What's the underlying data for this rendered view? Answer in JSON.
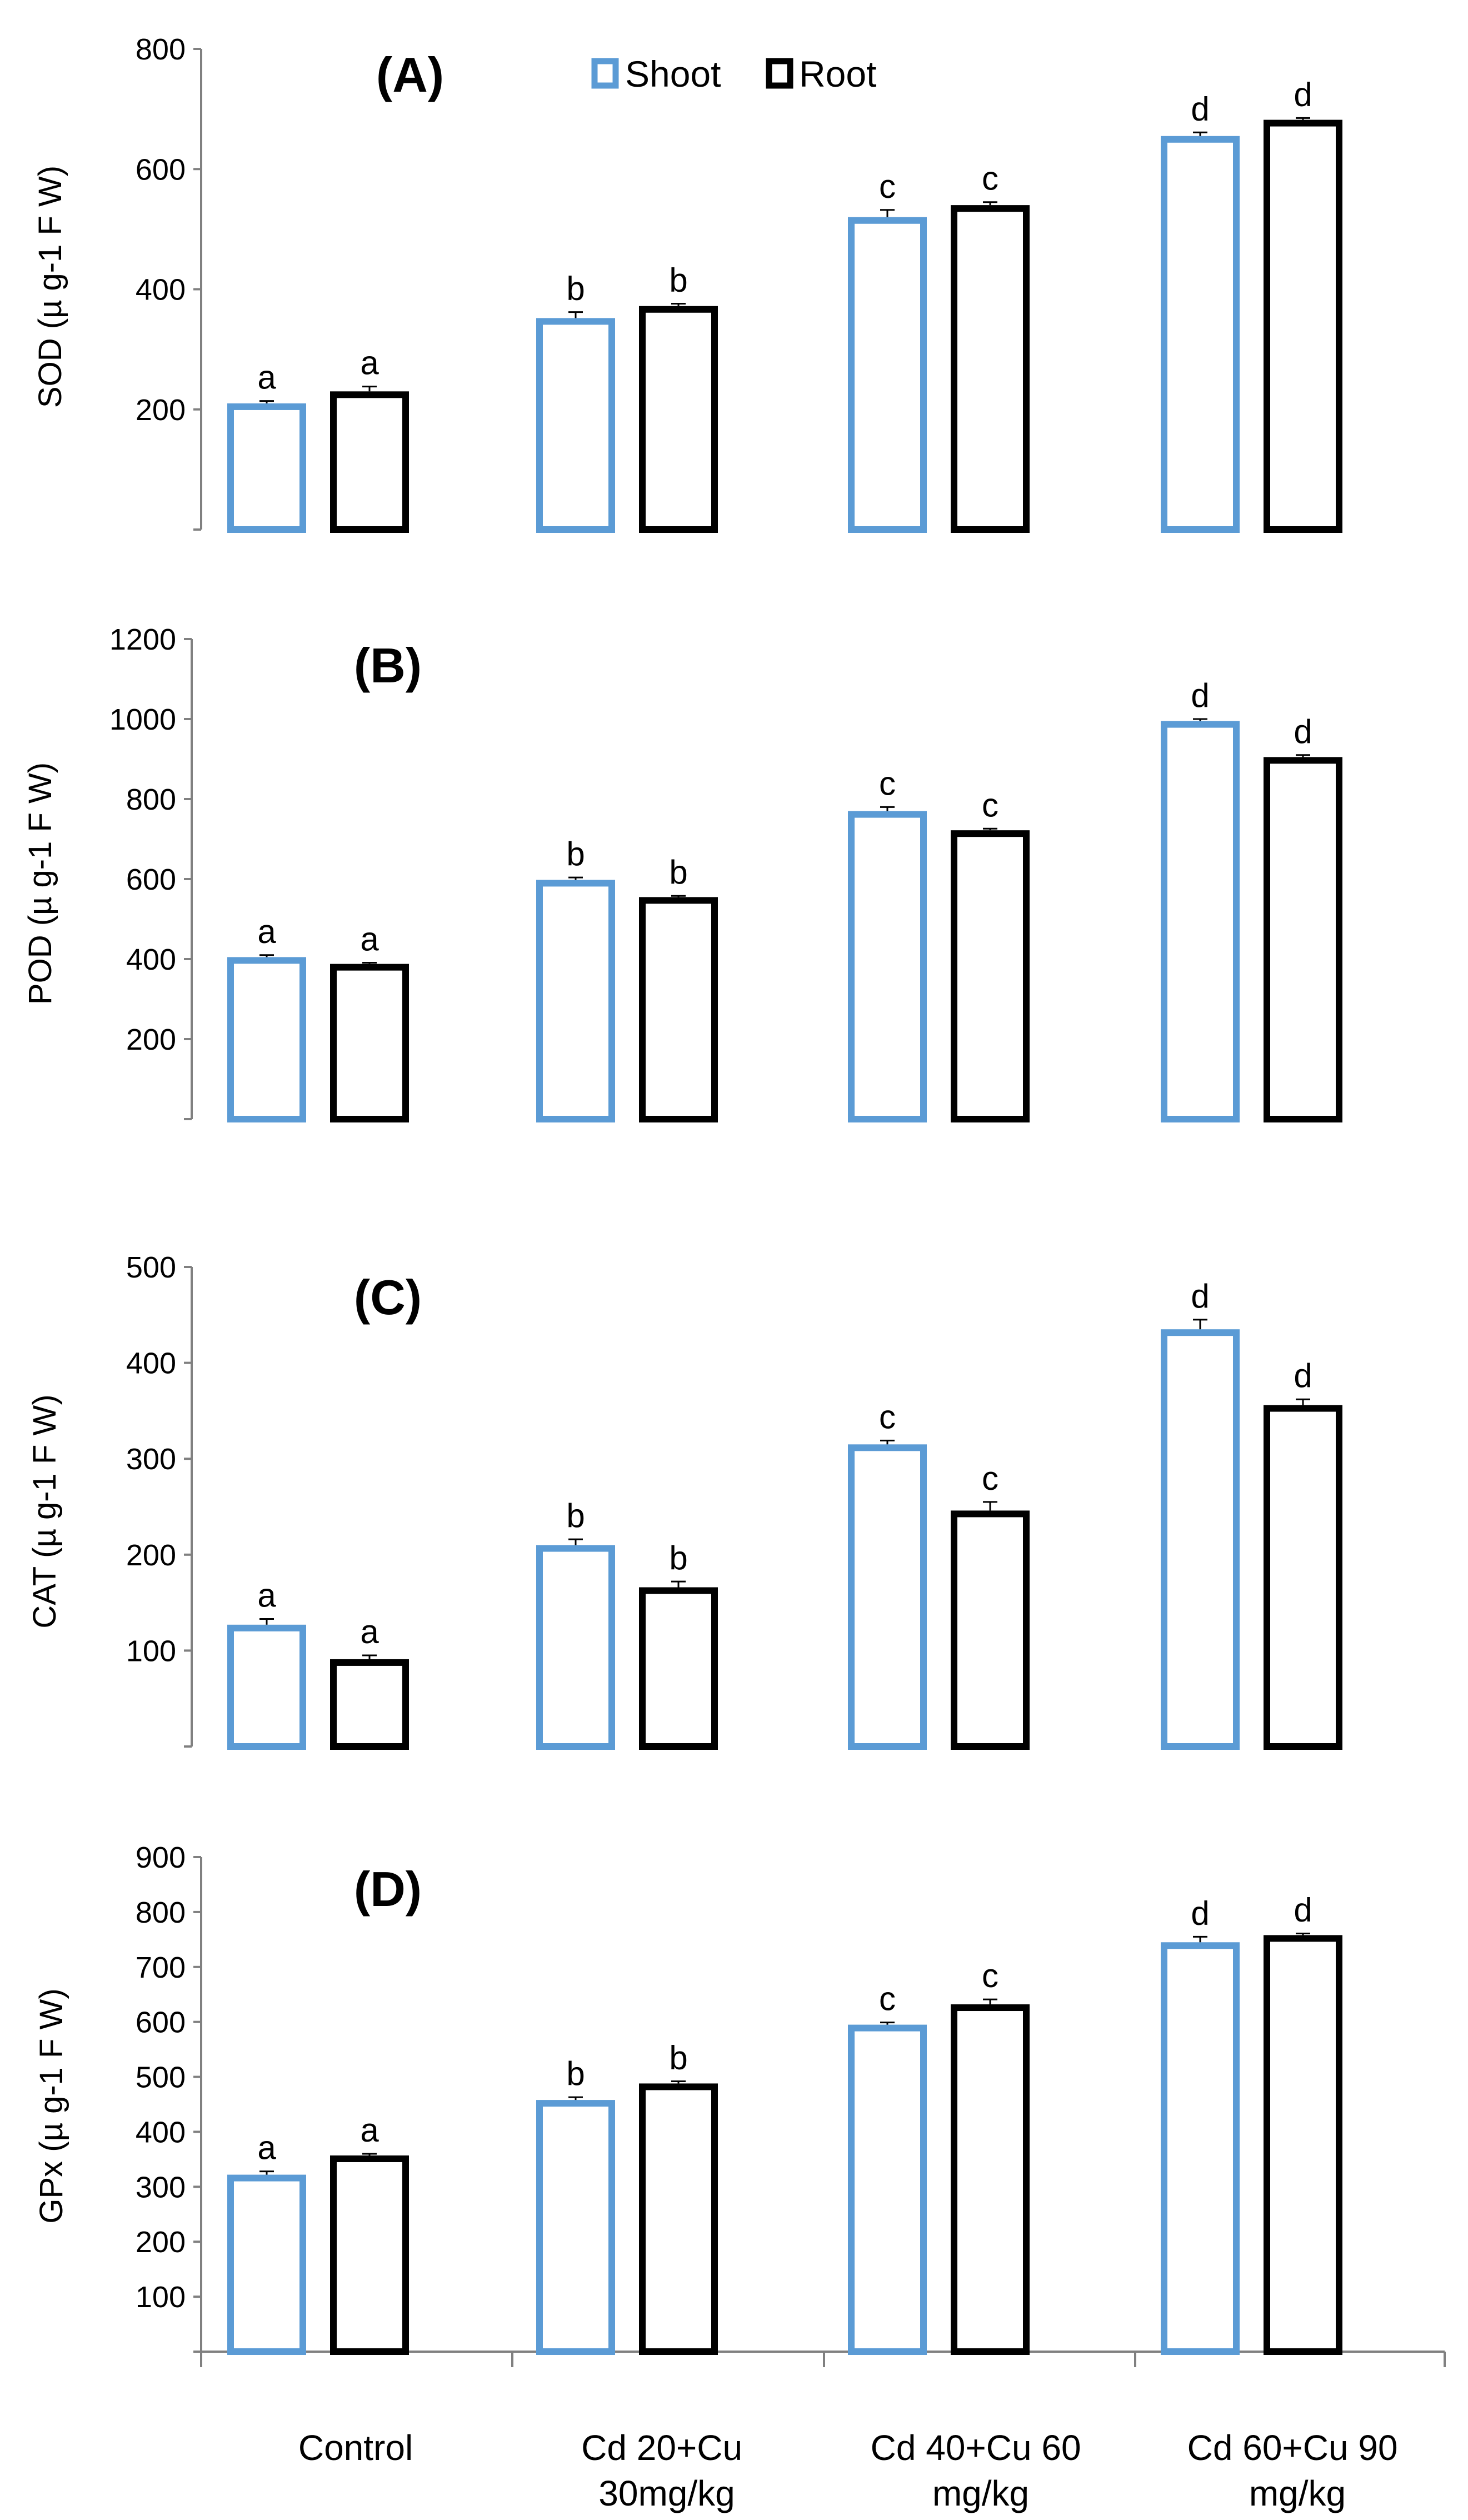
{
  "chart_data": [
    {
      "type": "bar",
      "title": "(A)",
      "ylabel": "SOD (µ g-1 F W)",
      "ylim": [
        0,
        800
      ],
      "yticks": [
        200,
        400,
        600,
        800
      ],
      "categories": [
        "Control",
        "Cd 20+Cu 30mg/kg",
        "Cd 40+Cu 60 mg/kg",
        "Cd 60+Cu 90 mg/kg"
      ],
      "series": [
        {
          "name": "Shoot",
          "color": "#5B9BD5",
          "values": [
            210,
            352,
            520,
            655
          ],
          "errors": [
            4,
            10,
            12,
            6
          ],
          "labels": [
            "a",
            "b",
            "c",
            "d"
          ]
        },
        {
          "name": "Root",
          "color": "#000000",
          "values": [
            230,
            372,
            540,
            682
          ],
          "errors": [
            8,
            4,
            5,
            3
          ],
          "labels": [
            "a",
            "b",
            "c",
            "d"
          ]
        }
      ]
    },
    {
      "type": "bar",
      "title": "(B)",
      "ylabel": "POD (µ g-1 F W)",
      "ylim": [
        0,
        1200
      ],
      "yticks": [
        200,
        400,
        600,
        800,
        1000,
        1200
      ],
      "categories": [
        "Control",
        "Cd 20+Cu 30mg/kg",
        "Cd 40+Cu 60 mg/kg",
        "Cd 60+Cu 90 mg/kg"
      ],
      "series": [
        {
          "name": "Shoot",
          "color": "#5B9BD5",
          "values": [
            405,
            598,
            770,
            995
          ],
          "errors": [
            5,
            6,
            10,
            5
          ],
          "labels": [
            "a",
            "b",
            "c",
            "d"
          ]
        },
        {
          "name": "Root",
          "color": "#000000",
          "values": [
            388,
            555,
            722,
            905
          ],
          "errors": [
            3,
            3,
            4,
            5
          ],
          "labels": [
            "a",
            "b",
            "c",
            "d"
          ]
        }
      ]
    },
    {
      "type": "bar",
      "title": "(C)",
      "ylabel": "CAT (µ g-1 F W)",
      "ylim": [
        0,
        500
      ],
      "yticks": [
        100,
        200,
        300,
        400,
        500
      ],
      "categories": [
        "Control",
        "Cd 20+Cu 30mg/kg",
        "Cd 40+Cu 60 mg/kg",
        "Cd 60+Cu 90 mg/kg"
      ],
      "series": [
        {
          "name": "Shoot",
          "color": "#5B9BD5",
          "values": [
            127,
            210,
            315,
            435
          ],
          "errors": [
            6,
            6,
            4,
            10
          ],
          "labels": [
            "a",
            "b",
            "c",
            "d"
          ]
        },
        {
          "name": "Root",
          "color": "#000000",
          "values": [
            91,
            166,
            246,
            356
          ],
          "errors": [
            4,
            6,
            9,
            6
          ],
          "labels": [
            "a",
            "b",
            "c",
            "d"
          ]
        }
      ]
    },
    {
      "type": "bar",
      "title": "(D)",
      "ylabel": "GPx (µ g-1 F W)",
      "ylim": [
        0,
        900
      ],
      "yticks": [
        100,
        200,
        300,
        400,
        500,
        600,
        700,
        800,
        900
      ],
      "categories": [
        "Control",
        "Cd 20+Cu 30mg/kg",
        "Cd 40+Cu 60 mg/kg",
        "Cd 60+Cu 90 mg/kg"
      ],
      "series": [
        {
          "name": "Shoot",
          "color": "#5B9BD5",
          "values": [
            322,
            458,
            595,
            745
          ],
          "errors": [
            6,
            5,
            4,
            10
          ],
          "labels": [
            "a",
            "b",
            "c",
            "d"
          ]
        },
        {
          "name": "Root",
          "color": "#000000",
          "values": [
            357,
            488,
            632,
            758
          ],
          "errors": [
            3,
            4,
            9,
            3
          ],
          "labels": [
            "a",
            "b",
            "c",
            "d"
          ]
        }
      ]
    }
  ],
  "legend": {
    "items": [
      {
        "label": "Shoot",
        "color": "#5B9BD5"
      },
      {
        "label": "Root",
        "color": "#000000"
      }
    ]
  },
  "x_axis": {
    "labels": [
      {
        "line1": "Control",
        "line2": ""
      },
      {
        "line1": "Cd 20+Cu",
        "line2": "30mg/kg"
      },
      {
        "line1": "Cd 40+Cu 60",
        "line2": "mg/kg"
      },
      {
        "line1": "Cd 60+Cu 90",
        "line2": "mg/kg"
      }
    ]
  }
}
